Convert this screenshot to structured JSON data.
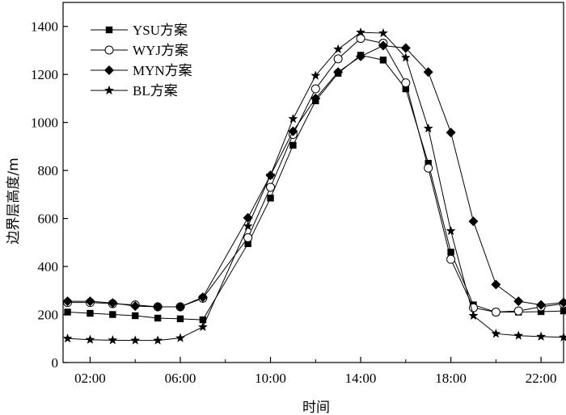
{
  "chart_data": {
    "type": "line",
    "xlabel": "时间",
    "ylabel": "边界层高度/m",
    "xlim": [
      0.8,
      23.0
    ],
    "ylim": [
      0,
      1500
    ],
    "x_ticks": [
      "02:00",
      "06:00",
      "10:00",
      "14:00",
      "18:00",
      "22:00"
    ],
    "x_tick_values": [
      2,
      6,
      10,
      14,
      18,
      22
    ],
    "y_ticks": [
      "0",
      "200",
      "400",
      "600",
      "800",
      "1000",
      "1200",
      "1400"
    ],
    "y_tick_values": [
      0,
      200,
      400,
      600,
      800,
      1000,
      1200,
      1400
    ],
    "legend_position": "top-left",
    "grid": false,
    "x": [
      1,
      2,
      3,
      4,
      5,
      6,
      7,
      9,
      10,
      11,
      12,
      13,
      14,
      15,
      16,
      17,
      18,
      19,
      20,
      21,
      22,
      23
    ],
    "series": [
      {
        "name": "YSU方案",
        "marker": "square",
        "values": [
          210,
          205,
          200,
          195,
          185,
          182,
          178,
          495,
          685,
          905,
          1090,
          1205,
          1280,
          1260,
          1140,
          830,
          460,
          240,
          210,
          210,
          212,
          215
        ]
      },
      {
        "name": "WYJ方案",
        "marker": "circle",
        "values": [
          250,
          250,
          245,
          240,
          232,
          232,
          268,
          520,
          730,
          950,
          1140,
          1265,
          1350,
          1330,
          1165,
          810,
          430,
          228,
          210,
          215,
          232,
          245
        ]
      },
      {
        "name": "MYN方案",
        "marker": "diamond",
        "values": [
          255,
          255,
          248,
          235,
          232,
          232,
          272,
          603,
          780,
          963,
          1100,
          1210,
          1275,
          1320,
          1310,
          1210,
          958,
          588,
          325,
          255,
          240,
          250
        ]
      },
      {
        "name": "BL方案",
        "marker": "star",
        "values": [
          100,
          95,
          93,
          92,
          92,
          102,
          148,
          568,
          780,
          1015,
          1195,
          1305,
          1375,
          1372,
          1270,
          975,
          548,
          195,
          120,
          112,
          108,
          105
        ]
      }
    ]
  }
}
